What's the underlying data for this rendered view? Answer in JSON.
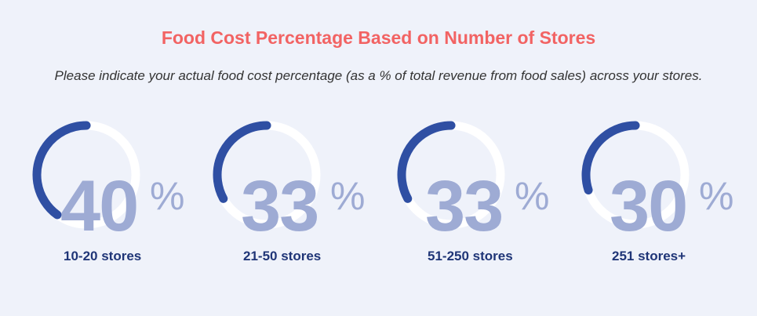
{
  "title": "Food Cost Percentage Based on Number of Stores",
  "subtitle": "Please indicate your actual food cost percentage (as a % of total revenue from food sales) across your stores.",
  "colors": {
    "title": "#f26363",
    "subtitle": "#333333",
    "arc": "#2f4fa3",
    "track": "#ffffff",
    "number": "#9eabd4",
    "label": "#1f3577"
  },
  "percent_symbol": "%",
  "chart_data": {
    "type": "radial-progress",
    "title": "Food Cost Percentage Based on Number of Stores",
    "categories": [
      "10-20 stores",
      "21-50 stores",
      "51-250 stores",
      "251 stores+"
    ],
    "values": [
      40,
      33,
      33,
      30
    ],
    "unit": "%",
    "max": 100
  },
  "gauges": [
    {
      "value": "40",
      "label": "10-20 stores"
    },
    {
      "value": "33",
      "label": "21-50 stores"
    },
    {
      "value": "33",
      "label": "51-250 stores"
    },
    {
      "value": "30",
      "label": "251 stores+"
    }
  ]
}
